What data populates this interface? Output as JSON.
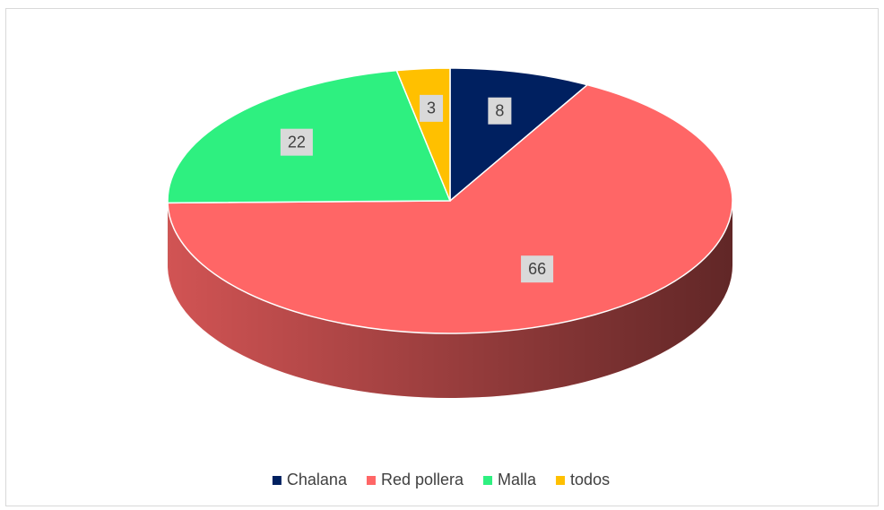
{
  "chart_data": {
    "type": "pie3d",
    "categories": [
      "Chalana",
      "Red pollera",
      "Malla",
      "todos"
    ],
    "values": [
      8,
      66,
      22,
      3
    ],
    "colors": [
      "#002060",
      "#ff6666",
      "#2ef080",
      "#ffc000"
    ],
    "legend": "bottom"
  }
}
